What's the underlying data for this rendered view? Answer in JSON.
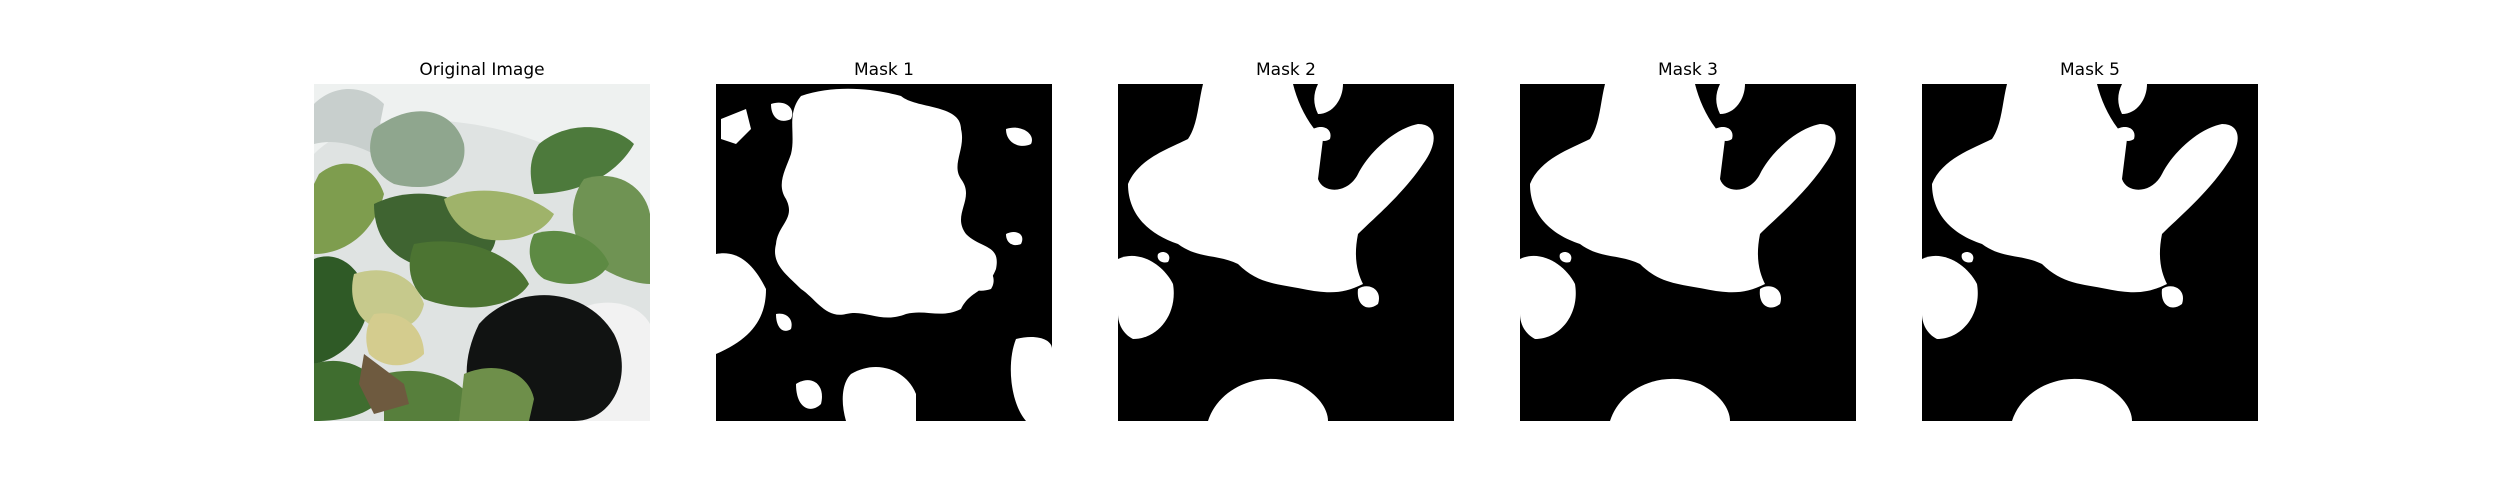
{
  "figure": {
    "panels": [
      {
        "title": "Original Image",
        "kind": "photo",
        "subject": "plant-leaves"
      },
      {
        "title": "Mask 1",
        "kind": "mask"
      },
      {
        "title": "Mask 2",
        "kind": "mask"
      },
      {
        "title": "Mask 3",
        "kind": "mask"
      },
      {
        "title": "Mask 5",
        "kind": "mask"
      }
    ],
    "colors": {
      "mask_foreground": "#ffffff",
      "mask_background": "#000000"
    }
  }
}
